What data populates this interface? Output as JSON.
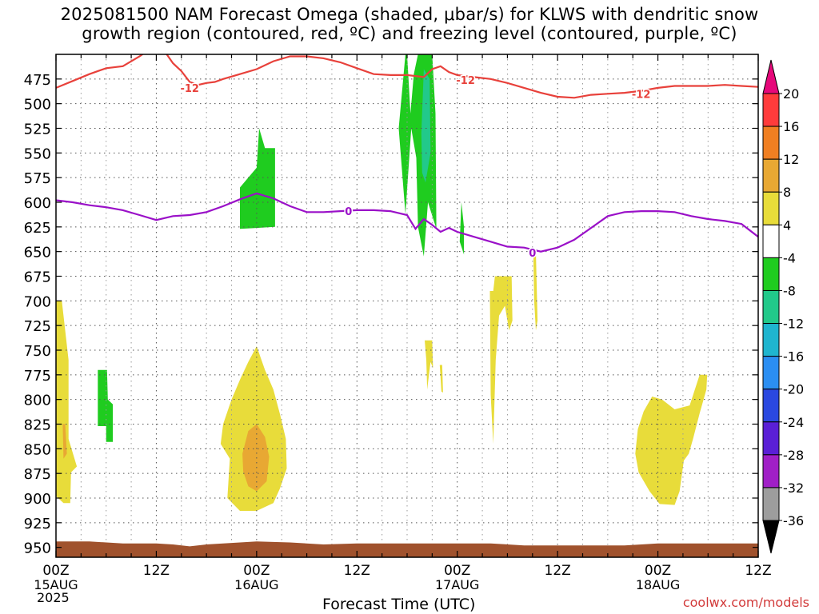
{
  "title_line1": "2025081500 NAM Forecast Omega (shaded, μbar/s) for KLWS with dendritic snow",
  "title_line2": "growth region (contoured, red, ºC) and freezing level (contoured, purple, ºC)",
  "credit": "coolwx.com/models",
  "chart_data": {
    "type": "heatmap",
    "xlabel": "Forecast Time (UTC)",
    "year_label": "2025",
    "x_ticks": [
      {
        "hour": 0,
        "label": "00Z",
        "sub": "15AUG"
      },
      {
        "hour": 12,
        "label": "12Z",
        "sub": ""
      },
      {
        "hour": 24,
        "label": "00Z",
        "sub": "16AUG"
      },
      {
        "hour": 36,
        "label": "12Z",
        "sub": ""
      },
      {
        "hour": 48,
        "label": "00Z",
        "sub": "17AUG"
      },
      {
        "hour": 60,
        "label": "12Z",
        "sub": ""
      },
      {
        "hour": 72,
        "label": "00Z",
        "sub": "18AUG"
      },
      {
        "hour": 84,
        "label": "12Z",
        "sub": ""
      }
    ],
    "x_range_hours": [
      0,
      84
    ],
    "y_ticks": [
      475,
      500,
      525,
      550,
      575,
      600,
      625,
      650,
      675,
      700,
      725,
      750,
      775,
      800,
      825,
      850,
      875,
      900,
      925,
      950
    ],
    "y_range_hPa": [
      450,
      960
    ],
    "colorbar": {
      "labels": [
        "20",
        "16",
        "12",
        "8",
        "4",
        "-4",
        "-8",
        "-12",
        "-16",
        "-20",
        "-24",
        "-28",
        "-32",
        "-36"
      ],
      "colors": [
        "#ff2a6a",
        "#ff3b3b",
        "#f07f22",
        "#e8a833",
        "#e8dc3a",
        "#ffffff",
        "#1fcc1f",
        "#22c98a",
        "#1fb5cf",
        "#2b8ef2",
        "#2a48e0",
        "#5a1fd6",
        "#a01fc7",
        "#9d9d9d",
        "#000000"
      ],
      "top_color": "#e6087a",
      "bottom_color": "#000000"
    },
    "dgz_top_-12C_hPa": [
      [
        0,
        484
      ],
      [
        2,
        477
      ],
      [
        4,
        470
      ],
      [
        6,
        464
      ],
      [
        8,
        462
      ],
      [
        10,
        452
      ],
      [
        11,
        446
      ],
      [
        12,
        443
      ],
      [
        13,
        447
      ],
      [
        14,
        459
      ],
      [
        15,
        467
      ],
      [
        16,
        478
      ],
      [
        17,
        481
      ],
      [
        18,
        479
      ],
      [
        19,
        478
      ],
      [
        20,
        475
      ],
      [
        22,
        470
      ],
      [
        24,
        465
      ],
      [
        26,
        457
      ],
      [
        28,
        452
      ],
      [
        30,
        452
      ],
      [
        32,
        454
      ],
      [
        34,
        458
      ],
      [
        36,
        464
      ],
      [
        38,
        470
      ],
      [
        40,
        471
      ],
      [
        42,
        471
      ],
      [
        44,
        473
      ],
      [
        45,
        465
      ],
      [
        46,
        462
      ],
      [
        47,
        468
      ],
      [
        48,
        471
      ],
      [
        50,
        473
      ],
      [
        52,
        475
      ],
      [
        54,
        479
      ],
      [
        56,
        484
      ],
      [
        58,
        489
      ],
      [
        60,
        493
      ],
      [
        62,
        494
      ],
      [
        64,
        491
      ],
      [
        66,
        490
      ],
      [
        68,
        489
      ],
      [
        70,
        487
      ],
      [
        72,
        484
      ],
      [
        74,
        482
      ],
      [
        76,
        482
      ],
      [
        78,
        482
      ],
      [
        80,
        481
      ],
      [
        82,
        482
      ],
      [
        84,
        483
      ]
    ],
    "dgz_labels": [
      {
        "hour": 16,
        "hPa": 484,
        "text": "-12"
      },
      {
        "hour": 49,
        "hPa": 476,
        "text": "-12"
      },
      {
        "hour": 70,
        "hPa": 490,
        "text": "-12"
      }
    ],
    "freezing_level_0C_hPa": [
      [
        0,
        598
      ],
      [
        2,
        600
      ],
      [
        4,
        603
      ],
      [
        6,
        605
      ],
      [
        8,
        608
      ],
      [
        10,
        613
      ],
      [
        12,
        618
      ],
      [
        14,
        614
      ],
      [
        16,
        613
      ],
      [
        18,
        610
      ],
      [
        20,
        604
      ],
      [
        22,
        597
      ],
      [
        24,
        591
      ],
      [
        26,
        596
      ],
      [
        28,
        604
      ],
      [
        30,
        610
      ],
      [
        32,
        610
      ],
      [
        34,
        609
      ],
      [
        36,
        608
      ],
      [
        38,
        608
      ],
      [
        40,
        609
      ],
      [
        42,
        613
      ],
      [
        43,
        627
      ],
      [
        44,
        617
      ],
      [
        45,
        623
      ],
      [
        46,
        630
      ],
      [
        47,
        626
      ],
      [
        48,
        630
      ],
      [
        50,
        635
      ],
      [
        52,
        640
      ],
      [
        54,
        645
      ],
      [
        56,
        646
      ],
      [
        58,
        650
      ],
      [
        60,
        646
      ],
      [
        62,
        638
      ],
      [
        64,
        626
      ],
      [
        66,
        614
      ],
      [
        68,
        610
      ],
      [
        70,
        609
      ],
      [
        72,
        609
      ],
      [
        74,
        610
      ],
      [
        76,
        614
      ],
      [
        78,
        617
      ],
      [
        80,
        619
      ],
      [
        82,
        622
      ],
      [
        84,
        635
      ]
    ],
    "fzl_labels": [
      {
        "hour": 35,
        "hPa": 609,
        "text": "0"
      },
      {
        "hour": 57,
        "hPa": 651,
        "text": "0"
      }
    ],
    "omega_regions": [
      {
        "level": "-4 to -8",
        "color": "#1fcc1f",
        "points": [
          [
            22,
            627
          ],
          [
            22,
            585
          ],
          [
            24,
            565
          ],
          [
            24.3,
            525
          ],
          [
            25,
            545
          ],
          [
            26.2,
            545
          ],
          [
            26.2,
            625
          ],
          [
            24,
            626
          ]
        ]
      },
      {
        "level": "-4 to -8",
        "color": "#1fcc1f",
        "points": [
          [
            41,
            525
          ],
          [
            41.8,
            450
          ],
          [
            42,
            450
          ],
          [
            42.4,
            510
          ],
          [
            42.8,
            470
          ],
          [
            43.3,
            450
          ],
          [
            45,
            450
          ],
          [
            45.4,
            510
          ],
          [
            45.5,
            627
          ],
          [
            44.5,
            600
          ],
          [
            44,
            655
          ],
          [
            43.3,
            625
          ],
          [
            43.1,
            555
          ],
          [
            42.5,
            525
          ],
          [
            41.8,
            612
          ]
        ]
      },
      {
        "level": "-8 to -12",
        "color": "#22c98a",
        "points": [
          [
            43.7,
            530
          ],
          [
            44,
            465
          ],
          [
            44.7,
            475
          ],
          [
            44.8,
            550
          ],
          [
            44.2,
            580
          ],
          [
            43.8,
            570
          ]
        ]
      },
      {
        "level": "-4 to -8",
        "color": "#1fcc1f",
        "points": [
          [
            48.3,
            640
          ],
          [
            48.5,
            600
          ],
          [
            48.8,
            625
          ],
          [
            48.8,
            653
          ]
        ]
      },
      {
        "level": "-4 to -8",
        "color": "#1fcc1f",
        "points": [
          [
            5,
            770
          ],
          [
            6.1,
            770
          ],
          [
            6.2,
            800
          ],
          [
            6.8,
            805
          ],
          [
            6.8,
            843
          ],
          [
            6,
            843
          ],
          [
            6,
            827
          ],
          [
            5,
            827
          ]
        ]
      },
      {
        "level": "4 to 8",
        "color": "#e8dc3a",
        "points": [
          [
            0,
            700
          ],
          [
            0.7,
            700
          ],
          [
            1.5,
            760
          ],
          [
            1.5,
            840
          ],
          [
            2.5,
            868
          ],
          [
            1.8,
            874
          ],
          [
            1.7,
            905
          ],
          [
            0.9,
            905
          ],
          [
            0,
            898
          ]
        ]
      },
      {
        "level": "8 to 12",
        "color": "#e8a833",
        "points": [
          [
            0.8,
            825
          ],
          [
            1.1,
            825
          ],
          [
            1.3,
            855
          ],
          [
            0.9,
            860
          ]
        ]
      },
      {
        "level": "4 to 8",
        "color": "#e8dc3a",
        "points": [
          [
            19.7,
            845
          ],
          [
            20,
            825
          ],
          [
            21,
            800
          ],
          [
            22,
            780
          ],
          [
            23,
            762
          ],
          [
            24,
            746
          ],
          [
            25,
            770
          ],
          [
            26,
            790
          ],
          [
            26.8,
            815
          ],
          [
            27.5,
            840
          ],
          [
            27.6,
            870
          ],
          [
            26.8,
            890
          ],
          [
            26,
            905
          ],
          [
            24,
            913
          ],
          [
            22,
            913
          ],
          [
            20.5,
            900
          ],
          [
            20.8,
            860
          ]
        ]
      },
      {
        "level": "8 to 12",
        "color": "#e8a833",
        "points": [
          [
            22.3,
            855
          ],
          [
            23,
            832
          ],
          [
            24,
            825
          ],
          [
            25,
            838
          ],
          [
            25.5,
            858
          ],
          [
            25.2,
            883
          ],
          [
            24,
            893
          ],
          [
            23,
            888
          ],
          [
            22.4,
            873
          ]
        ]
      },
      {
        "level": "4 to 8",
        "color": "#e8dc3a",
        "points": [
          [
            44.1,
            740
          ],
          [
            45,
            740
          ],
          [
            45.1,
            768
          ],
          [
            44.8,
            762
          ],
          [
            44.4,
            790
          ],
          [
            44.3,
            760
          ]
        ]
      },
      {
        "level": "4 to 8",
        "color": "#e8dc3a",
        "points": [
          [
            45.9,
            765
          ],
          [
            46.2,
            765
          ],
          [
            46.3,
            793
          ],
          [
            46.1,
            792
          ]
        ]
      },
      {
        "level": "4 to 8",
        "color": "#e8dc3a",
        "points": [
          [
            51.9,
            690
          ],
          [
            52.3,
            690
          ],
          [
            52.5,
            675
          ],
          [
            54.5,
            675
          ],
          [
            54.6,
            720
          ],
          [
            54.2,
            730
          ],
          [
            53.7,
            705
          ],
          [
            53,
            715
          ],
          [
            52.6,
            760
          ],
          [
            52.3,
            845
          ],
          [
            52,
            795
          ]
        ]
      },
      {
        "level": "4 to 8",
        "color": "#e8dc3a",
        "points": [
          [
            57.1,
            650
          ],
          [
            57.4,
            650
          ],
          [
            57.6,
            720
          ],
          [
            57.4,
            730
          ],
          [
            57.2,
            700
          ]
        ]
      },
      {
        "level": "4 to 8",
        "color": "#e8dc3a",
        "points": [
          [
            69.3,
            855
          ],
          [
            69.6,
            830
          ],
          [
            70.3,
            812
          ],
          [
            71.3,
            797
          ],
          [
            72.5,
            800
          ],
          [
            74,
            810
          ],
          [
            75.8,
            806
          ],
          [
            77,
            775
          ],
          [
            77.9,
            775
          ],
          [
            77.8,
            790
          ],
          [
            77,
            814
          ],
          [
            76.2,
            840
          ],
          [
            75.7,
            855
          ],
          [
            75.1,
            862
          ],
          [
            74.6,
            893
          ],
          [
            74,
            907
          ],
          [
            72.2,
            906
          ],
          [
            71,
            893
          ],
          [
            69.7,
            874
          ]
        ]
      }
    ],
    "terrain_hPa_top": [
      [
        0,
        944
      ],
      [
        4,
        944
      ],
      [
        8,
        946
      ],
      [
        12,
        946
      ],
      [
        14,
        947
      ],
      [
        16,
        949
      ],
      [
        18,
        947
      ],
      [
        20,
        946
      ],
      [
        24,
        944
      ],
      [
        28,
        945
      ],
      [
        32,
        947
      ],
      [
        36,
        946
      ],
      [
        40,
        946
      ],
      [
        44,
        946
      ],
      [
        48,
        946
      ],
      [
        52,
        946
      ],
      [
        56,
        948
      ],
      [
        60,
        948
      ],
      [
        64,
        948
      ],
      [
        68,
        948
      ],
      [
        72,
        946
      ],
      [
        76,
        946
      ],
      [
        80,
        946
      ],
      [
        84,
        946
      ]
    ],
    "terrain_color": "#a0522d",
    "dgz_color": "#e8413b",
    "fzl_color": "#9a10c8",
    "grid": true
  }
}
